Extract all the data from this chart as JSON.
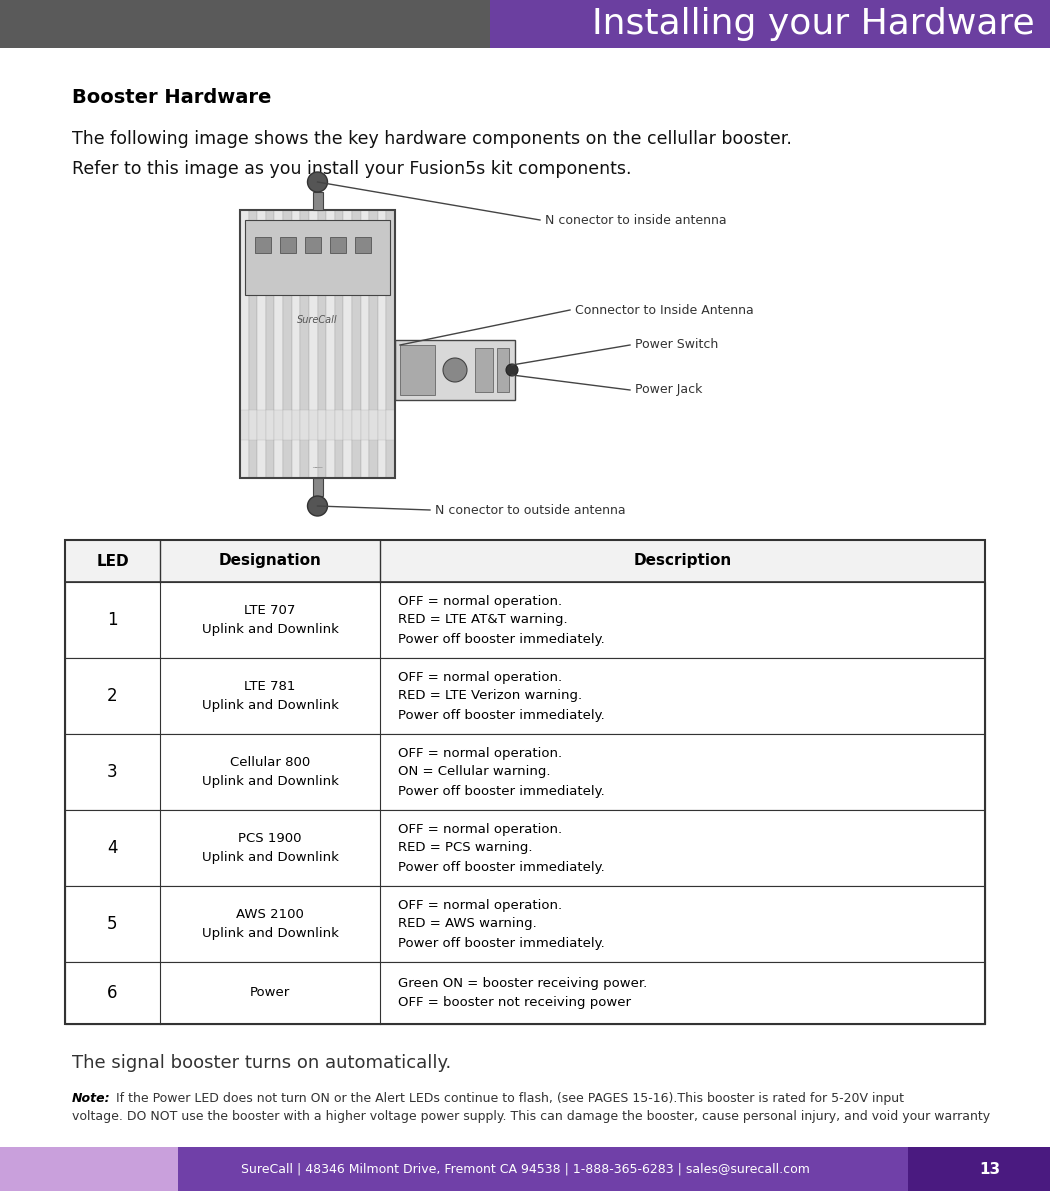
{
  "title": "Installing your Hardware",
  "title_bg_color": "#6b3fa0",
  "header_bg_color": "#5a5a5a",
  "page_bg_color": "#ffffff",
  "title_text_color": "#ffffff",
  "section_heading": "Booster Hardware",
  "intro_line1": "The following image shows the key hardware components on the cellullar booster.",
  "intro_line2": "Refer to this image as you install your Fusion5s kit components.",
  "footer_text": "SureCall | 48346 Milmont Drive, Fremont CA 94538 | 1-888-365-6283 | sales@surecall.com",
  "footer_page_num": "13",
  "footer_bg_left": "#c9a0dc",
  "footer_bg_mid": "#7040a8",
  "footer_bg_right": "#4a1a80",
  "signal_text": "The signal booster turns on automatically.",
  "note_bold": "Note:",
  "note_text": " If the Power LED does not turn ON or the Alert LEDs continue to flash, (see PAGES 15-16).This booster is rated for 5-20V input",
  "note_text2": "        voltage. DO NOT use the booster with a higher voltage power supply. This can damage the booster, cause personal injury, and void your warranty",
  "ann_inside": "N conector to inside antenna",
  "ann_outside": "N conector to outside antenna",
  "ann_connector": "Connector to Inside Antenna",
  "ann_switch": "Power Switch",
  "ann_jack": "Power Jack",
  "table_rows": [
    {
      "led": "1",
      "designation": "LTE 707\nUplink and Downlink",
      "description": "OFF = normal operation.\nRED = LTE AT&T warning.\nPower off booster immediately."
    },
    {
      "led": "2",
      "designation": "LTE 781\nUplink and Downlink",
      "description": "OFF = normal operation.\nRED = LTE Verizon warning.\nPower off booster immediately."
    },
    {
      "led": "3",
      "designation": "Cellular 800\nUplink and Downlink",
      "description": "OFF = normal operation.\nON = Cellular warning.\nPower off booster immediately."
    },
    {
      "led": "4",
      "designation": "PCS 1900\nUplink and Downlink",
      "description": "OFF = normal operation.\nRED = PCS warning.\nPower off booster immediately."
    },
    {
      "led": "5",
      "designation": "AWS 2100\nUplink and Downlink",
      "description": "OFF = normal operation.\nRED = AWS warning.\nPower off booster immediately."
    },
    {
      "led": "6",
      "designation": "Power",
      "description": "Green ON = booster receiving power.\nOFF = booster not receiving power"
    }
  ],
  "table_header": [
    "LED",
    "Designation",
    "Description"
  ]
}
